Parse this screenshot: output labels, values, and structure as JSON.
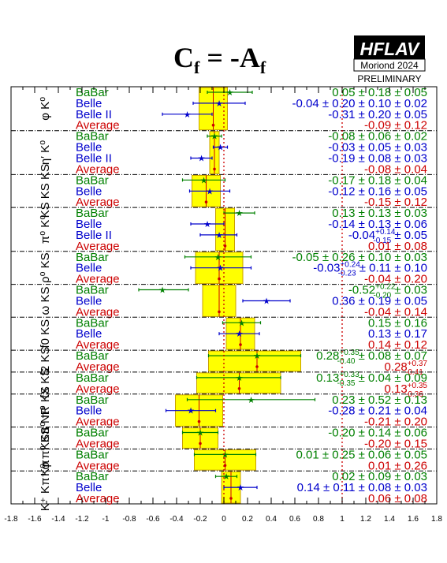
{
  "title": {
    "main": "C",
    "main_sub": "f",
    "rest": " = -A",
    "rest_sub": "f"
  },
  "logo": {
    "name": "HFLAV",
    "conference": "Moriond 2024",
    "status": "PRELIMINARY"
  },
  "colors": {
    "BaBar": "#008000",
    "Belle": "#0000cc",
    "Belle II": "#0000cc",
    "Average": "#cc0000",
    "band": "#ffff00",
    "band_edge": "#c8a000"
  },
  "chart_data": {
    "type": "scatter",
    "title": "Cf = -Af",
    "xlim": [
      -1.8,
      1.8
    ],
    "x_ticks": [
      "-1.8",
      "-1.6",
      "-1.4",
      "-1.2",
      "-1",
      "-0.8",
      "-0.6",
      "-0.4",
      "-0.2",
      "0",
      "0.2",
      "0.4",
      "0.6",
      "0.8",
      "1",
      "1.2",
      "1.4",
      "1.6",
      "1.8"
    ],
    "reference_lines": [
      0,
      1
    ],
    "groups": [
      {
        "label": "φ K⁰",
        "entries": [
          {
            "exp": "BaBar",
            "value": 0.05,
            "err_lo": 0.19,
            "err_hi": 0.19,
            "text": "0.05 ± 0.18 ± 0.05"
          },
          {
            "exp": "Belle",
            "value": -0.04,
            "err_lo": 0.22,
            "err_hi": 0.22,
            "text": "-0.04 ± 0.20 ± 0.10 ± 0.02"
          },
          {
            "exp": "Belle II",
            "value": -0.31,
            "err_lo": 0.21,
            "err_hi": 0.21,
            "text": "-0.31 ± 0.20 ± 0.05"
          },
          {
            "exp": "Average",
            "value": -0.09,
            "err_lo": 0.12,
            "err_hi": 0.12,
            "text": "-0.09 ± 0.12"
          }
        ]
      },
      {
        "label": "η′ K⁰",
        "entries": [
          {
            "exp": "BaBar",
            "value": -0.08,
            "err_lo": 0.06,
            "err_hi": 0.06,
            "text": "-0.08 ± 0.06 ± 0.02"
          },
          {
            "exp": "Belle",
            "value": -0.03,
            "err_lo": 0.06,
            "err_hi": 0.06,
            "text": "-0.03 ± 0.05 ± 0.03"
          },
          {
            "exp": "Belle II",
            "value": -0.19,
            "err_lo": 0.09,
            "err_hi": 0.09,
            "text": "-0.19 ± 0.08 ± 0.03"
          },
          {
            "exp": "Average",
            "value": -0.08,
            "err_lo": 0.04,
            "err_hi": 0.04,
            "text": "-0.08 ± 0.04"
          }
        ]
      },
      {
        "label": "KS KS KS",
        "entries": [
          {
            "exp": "BaBar",
            "value": -0.17,
            "err_lo": 0.18,
            "err_hi": 0.18,
            "text": "-0.17 ± 0.18 ± 0.04"
          },
          {
            "exp": "Belle",
            "value": -0.12,
            "err_lo": 0.17,
            "err_hi": 0.17,
            "text": "-0.12 ± 0.16 ± 0.05"
          },
          {
            "exp": "Average",
            "value": -0.15,
            "err_lo": 0.12,
            "err_hi": 0.12,
            "text": "-0.15 ± 0.12"
          }
        ]
      },
      {
        "label": "π⁰ K⁰",
        "entries": [
          {
            "exp": "BaBar",
            "value": 0.13,
            "err_lo": 0.13,
            "err_hi": 0.13,
            "text": "0.13 ± 0.13 ± 0.03"
          },
          {
            "exp": "Belle",
            "value": -0.14,
            "err_lo": 0.14,
            "err_hi": 0.14,
            "text": "-0.14 ± 0.13 ± 0.06"
          },
          {
            "exp": "Belle II",
            "value": -0.04,
            "err_lo": 0.16,
            "err_hi": 0.15,
            "text": "-0.04",
            "sup": "+0.14",
            "sub": "-0.15",
            "tail": " ± 0.05"
          },
          {
            "exp": "Average",
            "value": 0.01,
            "err_lo": 0.08,
            "err_hi": 0.08,
            "text": "0.01 ± 0.08"
          }
        ]
      },
      {
        "label": "ρ⁰ KS",
        "entries": [
          {
            "exp": "BaBar",
            "value": -0.05,
            "err_lo": 0.28,
            "err_hi": 0.28,
            "text": "-0.05 ± 0.26 ± 0.10 ± 0.03"
          },
          {
            "exp": "Belle",
            "value": -0.03,
            "err_lo": 0.25,
            "err_hi": 0.26,
            "text": "-0.03",
            "sup": "+0.24",
            "sub": "-0.23",
            "tail": " ± 0.11 ± 0.10"
          },
          {
            "exp": "Average",
            "value": -0.04,
            "err_lo": 0.2,
            "err_hi": 0.2,
            "text": "-0.04 ± 0.20"
          }
        ]
      },
      {
        "label": "ω KS",
        "entries": [
          {
            "exp": "BaBar",
            "value": -0.52,
            "err_lo": 0.2,
            "err_hi": 0.22,
            "text": "-0.52",
            "sup": "+0.22",
            "sub": "-0.20",
            "tail": " ± 0.03"
          },
          {
            "exp": "Belle",
            "value": 0.36,
            "err_lo": 0.2,
            "err_hi": 0.2,
            "text": "0.36 ± 0.19 ± 0.05"
          },
          {
            "exp": "Average",
            "value": -0.04,
            "err_lo": 0.14,
            "err_hi": 0.14,
            "text": "-0.04 ± 0.14"
          }
        ]
      },
      {
        "label": "f0 KS",
        "entries": [
          {
            "exp": "BaBar",
            "value": 0.15,
            "err_lo": 0.16,
            "err_hi": 0.16,
            "text": "0.15 ± 0.16"
          },
          {
            "exp": "Belle",
            "value": 0.13,
            "err_lo": 0.17,
            "err_hi": 0.17,
            "text": "0.13 ± 0.17"
          },
          {
            "exp": "Average",
            "value": 0.14,
            "err_lo": 0.12,
            "err_hi": 0.12,
            "text": "0.14 ± 0.12"
          }
        ]
      },
      {
        "label": "f2 KS",
        "entries": [
          {
            "exp": "BaBar",
            "value": 0.28,
            "err_lo": 0.41,
            "err_hi": 0.37,
            "text": "0.28",
            "sup": "+0.35",
            "sub": "-0.40",
            "tail": " ± 0.08 ± 0.07"
          },
          {
            "exp": "Average",
            "value": 0.28,
            "err_lo": 0.41,
            "err_hi": 0.37,
            "text": "0.28",
            "sup": "+0.37",
            "sub": "-0.41",
            "tail": ""
          }
        ]
      },
      {
        "label": "fX KS",
        "entries": [
          {
            "exp": "BaBar",
            "value": 0.13,
            "err_lo": 0.36,
            "err_hi": 0.35,
            "text": "0.13",
            "sup": "+0.33",
            "sub": "-0.35",
            "tail": " ± 0.04 ± 0.09"
          },
          {
            "exp": "Average",
            "value": 0.13,
            "err_lo": 0.36,
            "err_hi": 0.35,
            "text": "0.13",
            "sup": "+0.35",
            "sub": "-0.36",
            "tail": ""
          }
        ]
      },
      {
        "label": "π⁰ π⁰ KS",
        "entries": [
          {
            "exp": "BaBar",
            "value": 0.23,
            "err_lo": 0.54,
            "err_hi": 0.54,
            "text": "0.23 ± 0.52 ± 0.13"
          },
          {
            "exp": "Belle",
            "value": -0.28,
            "err_lo": 0.21,
            "err_hi": 0.21,
            "text": "-0.28 ± 0.21 ± 0.04"
          },
          {
            "exp": "Average",
            "value": -0.21,
            "err_lo": 0.2,
            "err_hi": 0.2,
            "text": "-0.21 ± 0.20"
          }
        ]
      },
      {
        "label": "φ π⁰ KS NR",
        "entries": [
          {
            "exp": "BaBar",
            "value": -0.2,
            "err_lo": 0.15,
            "err_hi": 0.15,
            "text": "-0.20 ± 0.14 ± 0.06"
          },
          {
            "exp": "Average",
            "value": -0.2,
            "err_lo": 0.15,
            "err_hi": 0.15,
            "text": "-0.20 ± 0.15"
          }
        ]
      },
      {
        "label": "π⁺ π⁻ KS",
        "entries": [
          {
            "exp": "BaBar",
            "value": 0.01,
            "err_lo": 0.26,
            "err_hi": 0.26,
            "text": "0.01 ± 0.25 ± 0.06 ± 0.05"
          },
          {
            "exp": "Average",
            "value": 0.01,
            "err_lo": 0.26,
            "err_hi": 0.26,
            "text": "0.01 ± 0.26"
          }
        ]
      },
      {
        "label": "K⁺ K⁻ K⁰",
        "entries": [
          {
            "exp": "BaBar",
            "value": 0.02,
            "err_lo": 0.09,
            "err_hi": 0.09,
            "text": "0.02 ± 0.09 ± 0.03"
          },
          {
            "exp": "Belle",
            "value": 0.14,
            "err_lo": 0.14,
            "err_hi": 0.14,
            "text": "0.14 ± 0.11 ± 0.08 ± 0.03"
          },
          {
            "exp": "Average",
            "value": 0.06,
            "err_lo": 0.08,
            "err_hi": 0.08,
            "text": "0.06 ± 0.08"
          }
        ]
      }
    ]
  }
}
